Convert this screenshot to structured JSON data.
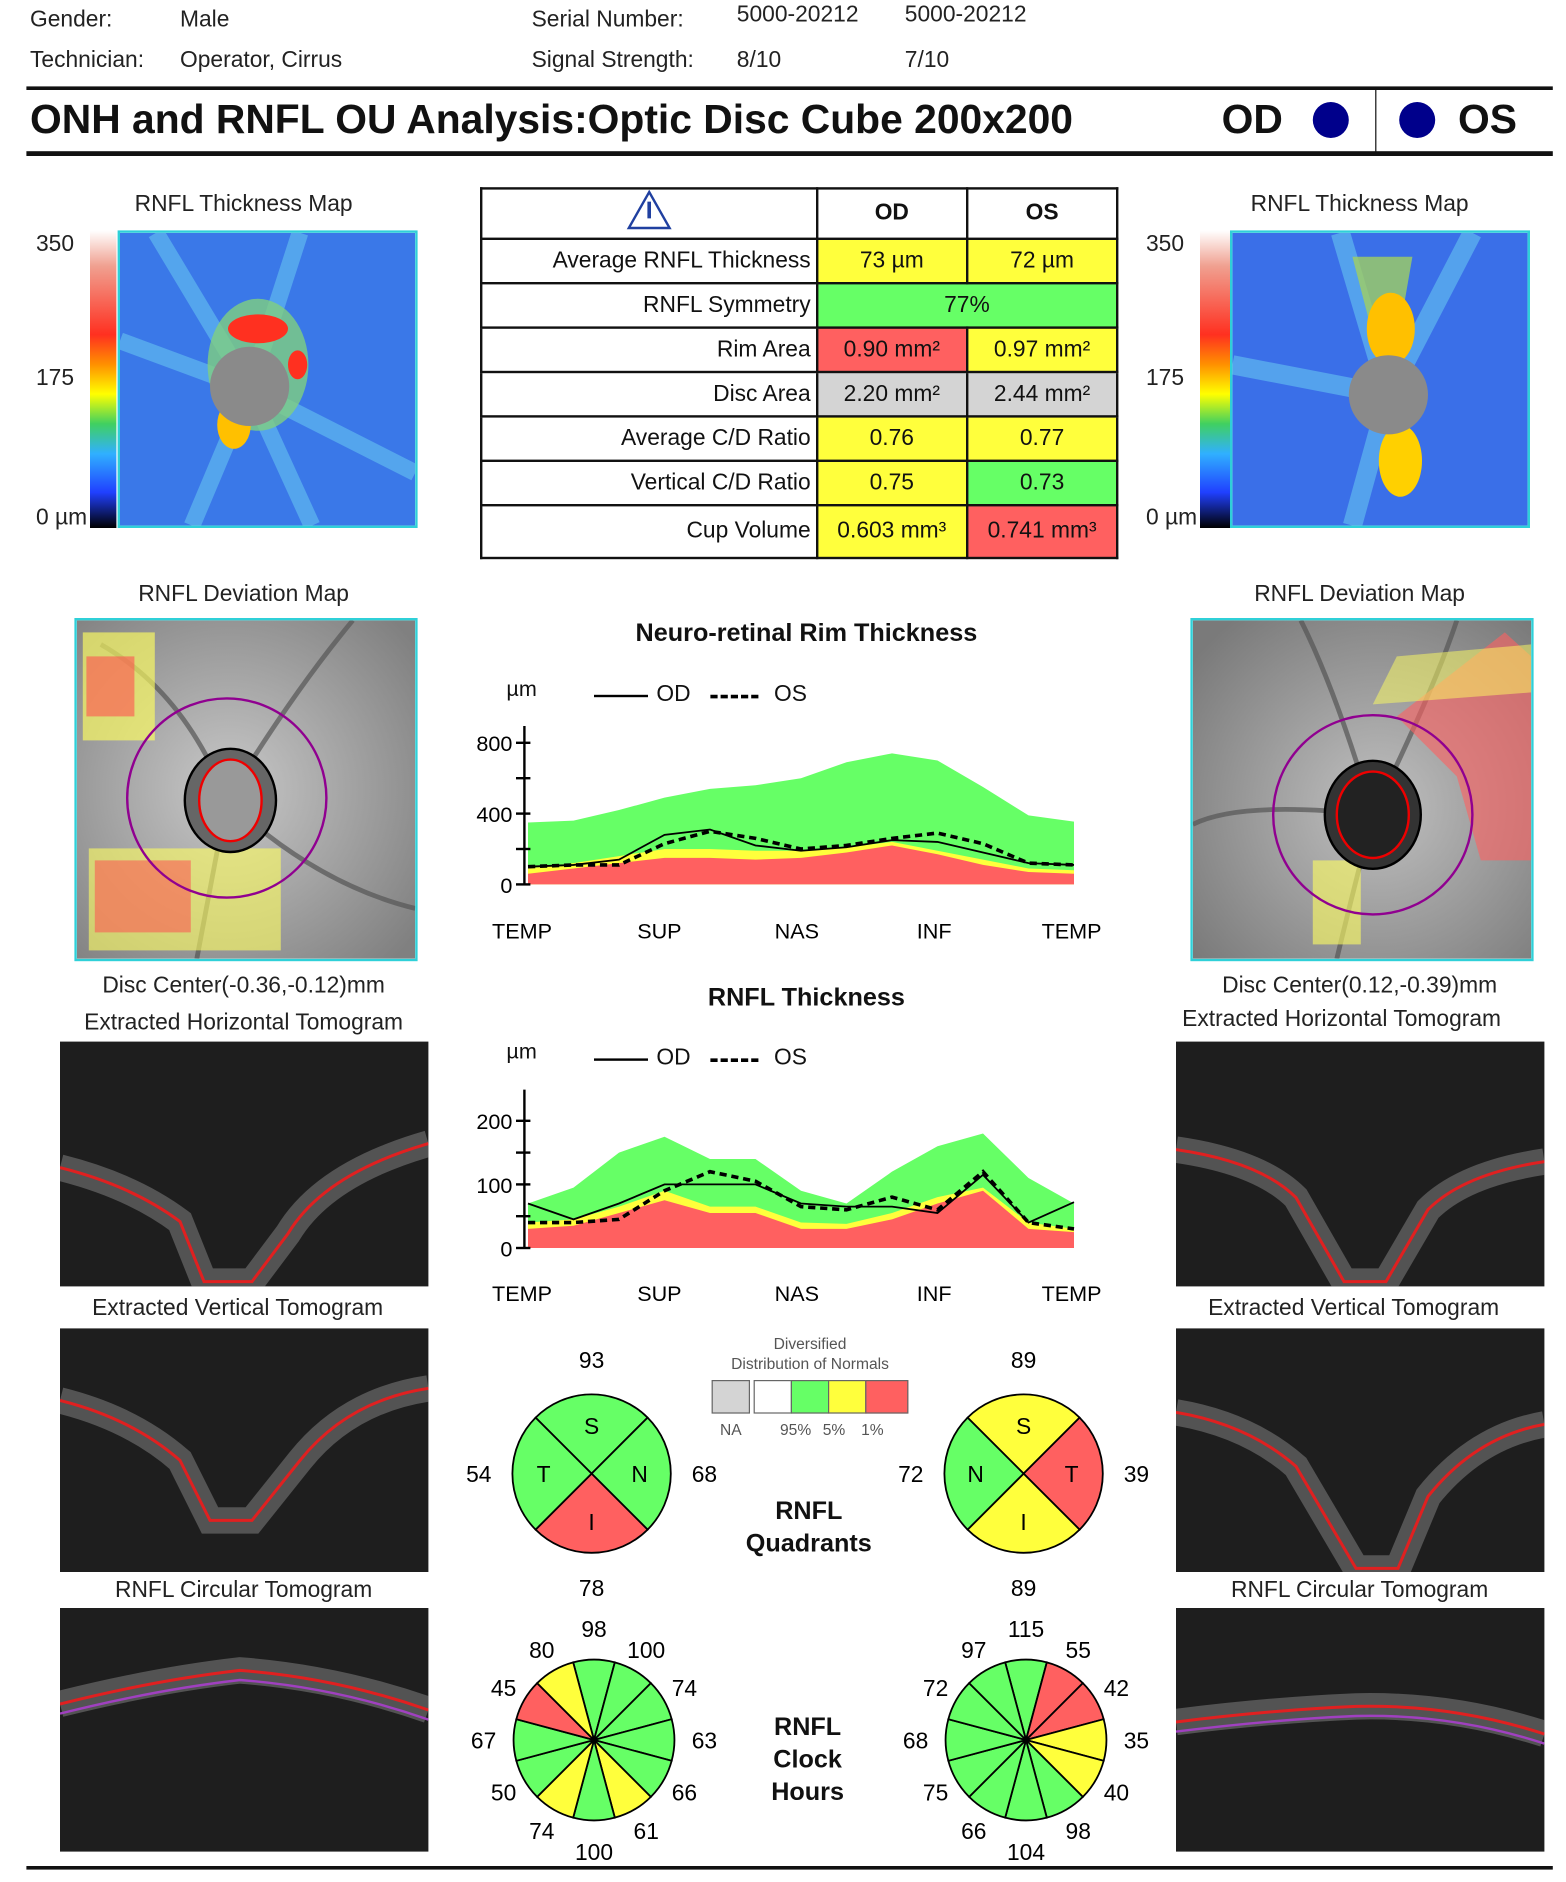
{
  "header": {
    "gender_label": "Gender:",
    "gender": "Male",
    "technician_label": "Technician:",
    "technician": "Operator, Cirrus",
    "serial_label": "Serial Number:",
    "serial_od": "5000-20212",
    "serial_os": "5000-20212",
    "signal_label": "Signal Strength:",
    "signal_od": "8/10",
    "signal_os": "7/10"
  },
  "title": {
    "text": "ONH and RNFL OU Analysis:Optic Disc Cube 200x200",
    "od": "OD",
    "os": "OS",
    "eye_dot_color": "#00008b"
  },
  "thickness_map": {
    "label": "RNFL Thickness Map",
    "scale_max": "350",
    "scale_mid": "175",
    "scale_min": "0 µm"
  },
  "table": {
    "icon": "warning-triangle-icon",
    "col_od": "OD",
    "col_os": "OS",
    "rows": [
      {
        "label": "Average RNFL Thickness",
        "od": "73 µm",
        "os": "72 µm",
        "od_status": "yellow",
        "os_status": "yellow"
      },
      {
        "label": "RNFL Symmetry",
        "value": "77%",
        "status": "green"
      },
      {
        "label": "Rim Area",
        "od": "0.90 mm²",
        "os": "0.97 mm²",
        "od_status": "red",
        "os_status": "yellow"
      },
      {
        "label": "Disc Area",
        "od": "2.20 mm²",
        "os": "2.44 mm²",
        "od_status": "gray",
        "os_status": "gray"
      },
      {
        "label": "Average C/D Ratio",
        "od": "0.76",
        "os": "0.77",
        "od_status": "yellow",
        "os_status": "yellow"
      },
      {
        "label": "Vertical C/D Ratio",
        "od": "0.75",
        "os": "0.73",
        "od_status": "yellow",
        "os_status": "green"
      },
      {
        "label": "Cup Volume",
        "od": "0.603 mm³",
        "os": "0.741 mm³",
        "od_status": "yellow",
        "os_status": "red"
      }
    ]
  },
  "deviation_map": {
    "label": "RNFL Deviation Map",
    "od_center": "Disc Center(-0.36,-0.12)mm",
    "os_center": "Disc Center(0.12,-0.39)mm"
  },
  "tomograms": {
    "horizontal": "Extracted Horizontal Tomogram",
    "vertical": "Extracted Vertical Tomogram",
    "circular": "RNFL Circular Tomogram"
  },
  "colors": {
    "green": "#66ff66",
    "yellow": "#ffff3c",
    "red": "#ff6060",
    "gray": "#d4d4d4",
    "white": "#ffffff",
    "cyan_border": "#2fd0d8"
  },
  "chart_data": [
    {
      "type": "area",
      "title": "Neuro-retinal Rim Thickness",
      "ylabel": "µm",
      "ylim": [
        0,
        900
      ],
      "yticks": [
        0,
        400,
        800
      ],
      "categories": [
        "TEMP",
        "SUP",
        "NAS",
        "INF",
        "TEMP"
      ],
      "x": [
        0,
        1,
        2,
        3,
        4,
        5,
        6,
        7,
        8,
        9,
        10,
        11,
        12
      ],
      "bands": {
        "p95": [
          350,
          360,
          420,
          490,
          540,
          560,
          600,
          690,
          740,
          700,
          550,
          390,
          355
        ],
        "p5": [
          90,
          120,
          160,
          200,
          200,
          190,
          190,
          210,
          240,
          190,
          140,
          90,
          80
        ],
        "p1": [
          60,
          90,
          120,
          150,
          150,
          140,
          150,
          180,
          220,
          170,
          110,
          70,
          60
        ]
      },
      "series": [
        {
          "name": "OD",
          "style": "solid",
          "values": [
            100,
            110,
            140,
            280,
            310,
            220,
            190,
            210,
            250,
            240,
            180,
            120,
            110
          ]
        },
        {
          "name": "OS",
          "style": "dashed",
          "values": [
            100,
            110,
            110,
            230,
            300,
            260,
            200,
            220,
            260,
            290,
            230,
            120,
            110
          ]
        }
      ]
    },
    {
      "type": "area",
      "title": "RNFL Thickness",
      "ylabel": "µm",
      "ylim": [
        0,
        250
      ],
      "yticks": [
        0,
        100,
        200
      ],
      "categories": [
        "TEMP",
        "SUP",
        "NAS",
        "INF",
        "TEMP"
      ],
      "x": [
        0,
        1,
        2,
        3,
        4,
        5,
        6,
        7,
        8,
        9,
        10,
        11,
        12
      ],
      "bands": {
        "p95": [
          70,
          95,
          150,
          175,
          140,
          140,
          90,
          70,
          120,
          160,
          180,
          110,
          70
        ],
        "p5": [
          40,
          45,
          65,
          90,
          65,
          65,
          40,
          38,
          55,
          80,
          95,
          40,
          30
        ],
        "p1": [
          30,
          35,
          55,
          75,
          55,
          55,
          30,
          30,
          45,
          70,
          90,
          30,
          25
        ]
      },
      "series": [
        {
          "name": "OD",
          "style": "solid",
          "values": [
            70,
            45,
            70,
            100,
            100,
            100,
            70,
            65,
            65,
            55,
            115,
            40,
            72
          ]
        },
        {
          "name": "OS",
          "style": "dashed",
          "values": [
            40,
            40,
            45,
            90,
            120,
            105,
            65,
            60,
            80,
            60,
            120,
            40,
            30
          ]
        }
      ]
    }
  ],
  "normals_legend": {
    "title1": "Diversified",
    "title2": "Distribution of Normals",
    "labels": [
      "NA",
      "95%",
      "5%",
      "1%"
    ]
  },
  "quadrants": {
    "title1": "RNFL",
    "title2": "Quadrants",
    "od": {
      "S": {
        "letter": "S",
        "value": "93",
        "status": "green"
      },
      "N": {
        "letter": "N",
        "value": "68",
        "status": "green"
      },
      "I": {
        "letter": "I",
        "value": "78",
        "status": "red"
      },
      "T": {
        "letter": "T",
        "value": "54",
        "status": "green"
      }
    },
    "os": {
      "S": {
        "letter": "S",
        "value": "89",
        "status": "yellow"
      },
      "T": {
        "letter": "T",
        "value": "39",
        "status": "red"
      },
      "I": {
        "letter": "I",
        "value": "89",
        "status": "yellow"
      },
      "N": {
        "letter": "N",
        "value": "72",
        "status": "green"
      }
    }
  },
  "clock_hours": {
    "title1": "RNFL",
    "title2": "Clock",
    "title3": "Hours",
    "od": {
      "values": [
        "98",
        "100",
        "74",
        "63",
        "66",
        "61",
        "100",
        "74",
        "50",
        "67",
        "45",
        "80"
      ],
      "status": [
        "green",
        "green",
        "green",
        "green",
        "green",
        "yellow",
        "green",
        "yellow",
        "green",
        "green",
        "red",
        "yellow"
      ]
    },
    "os": {
      "values": [
        "115",
        "55",
        "42",
        "35",
        "40",
        "98",
        "104",
        "66",
        "75",
        "68",
        "72",
        "97"
      ],
      "status": [
        "green",
        "red",
        "red",
        "yellow",
        "yellow",
        "green",
        "green",
        "green",
        "green",
        "green",
        "green",
        "green"
      ]
    }
  }
}
